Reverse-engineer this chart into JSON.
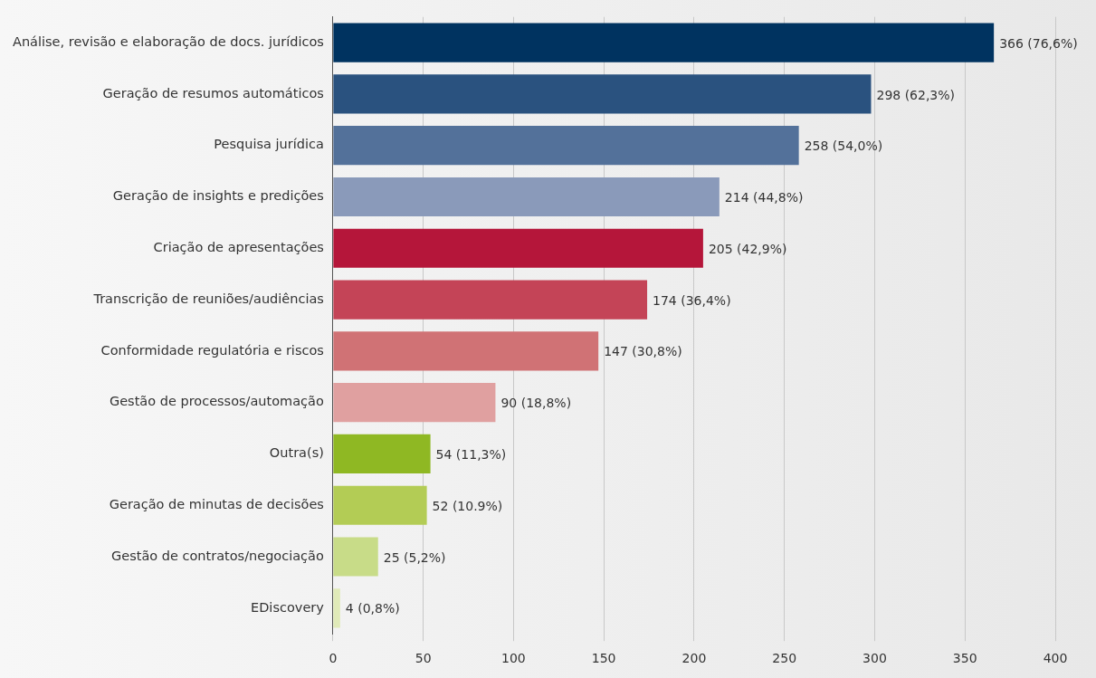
{
  "chart_data": {
    "type": "bar",
    "orientation": "horizontal",
    "categories": [
      "Análise, revisão e elaboração de docs. jurídicos",
      "Geração de resumos automáticos",
      "Pesquisa jurídica",
      "Geração de insights e predições",
      "Criação de apresentações",
      "Transcrição de reuniões/audiências",
      "Conformidade regulatória e riscos",
      "Gestão de processos/automação",
      "Outra(s)",
      "Geração de minutas de decisões",
      "Gestão de contratos/negociação",
      "EDiscovery"
    ],
    "values": [
      366,
      298,
      258,
      214,
      205,
      174,
      147,
      90,
      54,
      52,
      25,
      4
    ],
    "colors": [
      "#003360",
      "#2a527f",
      "#53719a",
      "#8a9aba",
      "#b5163a",
      "#c44457",
      "#d07275",
      "#e0a0a0",
      "#8fb823",
      "#b3cc55",
      "#c8dc88",
      "#e0eab8"
    ],
    "value_labels": [
      "366 (76,6%)",
      "298 (62,3%)",
      "258 (54,0%)",
      "214 (44,8%)",
      "205 (42,9%)",
      "174 (36,4%)",
      "147 (30,8%)",
      "90 (18,8%)",
      "54 (11,3%)",
      "52 (10.9%)",
      "25 (5,2%)",
      "4 (0,8%)"
    ],
    "xlim": [
      0,
      400
    ],
    "xticks": [
      0,
      50,
      100,
      150,
      200,
      250,
      300,
      350,
      400
    ],
    "grid": "x",
    "legend": false
  }
}
